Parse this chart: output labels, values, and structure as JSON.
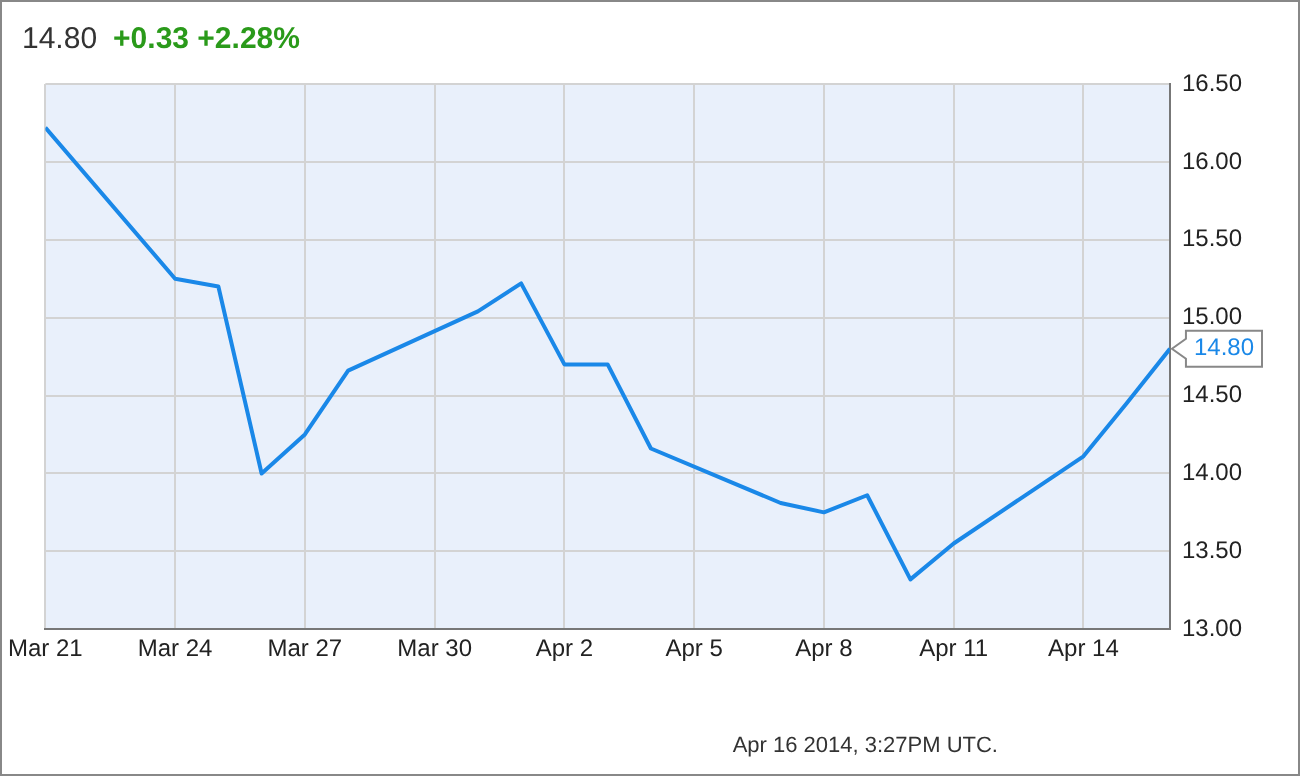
{
  "chart_data": {
    "type": "line",
    "title": "14.80",
    "subtitle": "+0.33  +2.28%",
    "annotations": [
      "Apr 16 2014, 3:27PM UTC."
    ],
    "series": [
      {
        "color": "#1a88e8",
        "x": [
          "2014-03-21",
          "2014-03-24",
          "2014-03-25",
          "2014-03-26",
          "2014-03-27",
          "2014-03-28",
          "2014-03-31",
          "2014-04-01",
          "2014-04-02",
          "2014-04-03",
          "2014-04-04",
          "2014-04-07",
          "2014-04-08",
          "2014-04-09",
          "2014-04-10",
          "2014-04-11",
          "2014-04-14",
          "2014-04-15",
          "2014-04-16"
        ],
        "values": [
          16.22,
          15.25,
          15.2,
          14.0,
          14.25,
          14.66,
          15.04,
          15.22,
          14.7,
          14.7,
          14.16,
          13.81,
          13.75,
          13.86,
          13.32,
          13.55,
          14.11,
          14.45,
          14.8
        ],
        "value_labels": [
          null,
          null,
          null,
          null,
          null,
          null,
          null,
          null,
          null,
          null,
          null,
          null,
          null,
          null,
          null,
          null,
          null,
          null,
          "14.80"
        ]
      }
    ],
    "xlim": [
      "2014-03-21",
      "2014-04-16"
    ],
    "xticks": [
      {
        "value": "2014-03-21",
        "label": "Mar 21"
      },
      {
        "value": "2014-03-24",
        "label": "Mar 24"
      },
      {
        "value": "2014-03-27",
        "label": "Mar 27"
      },
      {
        "value": "2014-03-30",
        "label": "Mar 30"
      },
      {
        "value": "2014-04-02",
        "label": "Apr 2"
      },
      {
        "value": "2014-04-05",
        "label": "Apr 5"
      },
      {
        "value": "2014-04-08",
        "label": "Apr 8"
      },
      {
        "value": "2014-04-11",
        "label": "Apr 11"
      },
      {
        "value": "2014-04-14",
        "label": "Apr 14"
      }
    ],
    "ylim": [
      13,
      16.5
    ],
    "yticks": [
      {
        "value": 13,
        "label": "13.00"
      },
      {
        "value": 13.5,
        "label": "13.50"
      },
      {
        "value": 14,
        "label": "14.00"
      },
      {
        "value": 14.5,
        "label": "14.50"
      },
      {
        "value": 15,
        "label": "15.00"
      },
      {
        "value": 15.5,
        "label": "15.50"
      },
      {
        "value": 16,
        "label": "16.00"
      },
      {
        "value": 16.5,
        "label": "16.50"
      }
    ],
    "grid": true,
    "legend": false,
    "marker": "none",
    "line_style": "solid"
  }
}
